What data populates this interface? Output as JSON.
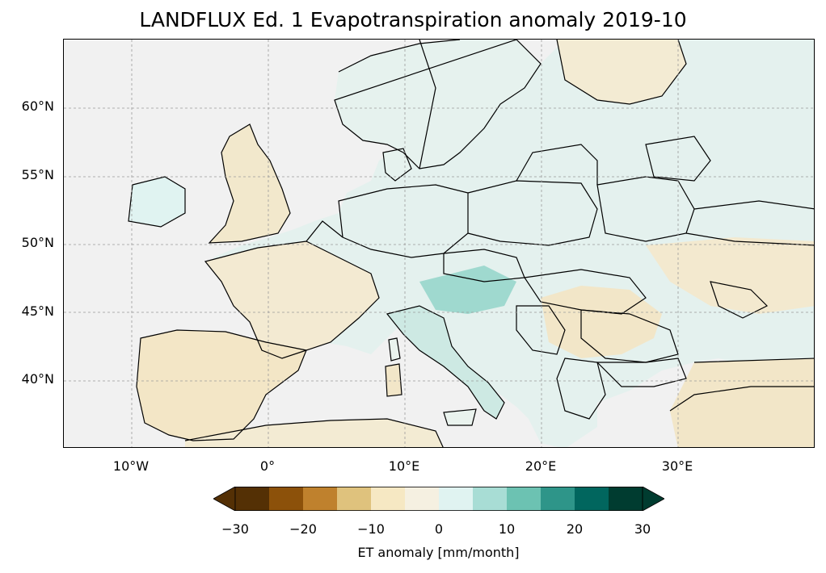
{
  "title": "LANDFLUX Ed. 1 Evapotranspiration anomaly 2019-10",
  "lat_labels": [
    "60°N",
    "55°N",
    "50°N",
    "45°N",
    "40°N"
  ],
  "lon_labels": [
    "10°W",
    "0°",
    "10°E",
    "20°E",
    "30°E"
  ],
  "colorbar": {
    "label": "ET anomaly [mm/month]",
    "ticks": [
      "−30",
      "−20",
      "−10",
      "0",
      "10",
      "20",
      "30"
    ],
    "bin_colors": [
      "#543005",
      "#8c510a",
      "#bf812d",
      "#dfc27d",
      "#f6e8c3",
      "#f5f0e1",
      "#e0f3f1",
      "#a8ddd5",
      "#6cc2b2",
      "#2e9589",
      "#01665e",
      "#003c30"
    ],
    "extend_low_color": "#543005",
    "extend_high_color": "#003c30"
  },
  "colors": {
    "ocean": "#f1f1f1",
    "land_neutral": "#f5f0e1",
    "land_wet": "#e0f3f1",
    "land_dry": "#f2e6c8"
  }
}
